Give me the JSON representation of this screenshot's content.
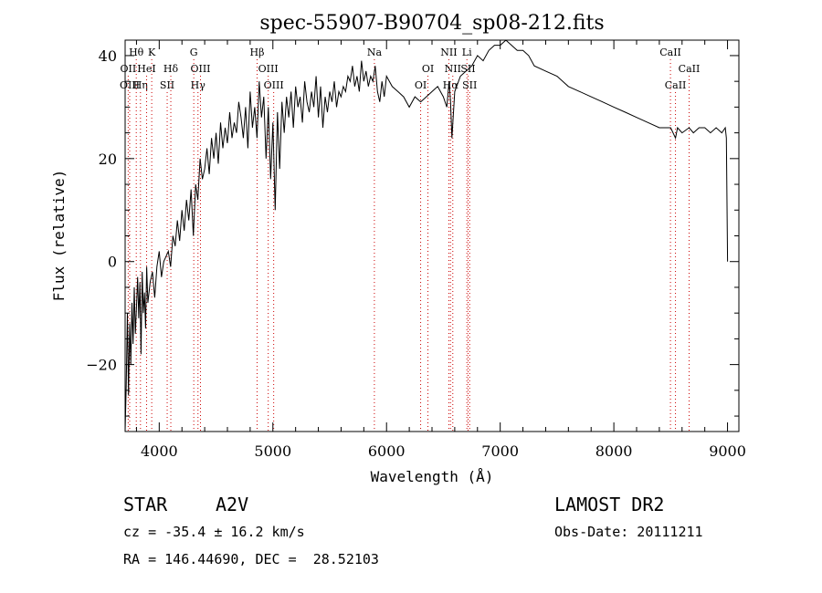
{
  "chart_data": {
    "type": "line",
    "title": "spec-55907-B90704_sp08-212.fits",
    "xlabel": "Wavelength (Å)",
    "ylabel": "Flux (relative)",
    "xlim": [
      3700,
      9100
    ],
    "ylim": [
      -33,
      43
    ],
    "x_ticks": [
      4000,
      5000,
      6000,
      7000,
      8000,
      9000
    ],
    "y_ticks": [
      -20,
      0,
      20,
      40
    ],
    "x_minor_step": 200,
    "y_minor_step": 5,
    "grid": false,
    "series": [
      {
        "x": [
          3700,
          3710,
          3720,
          3730,
          3740,
          3750,
          3760,
          3770,
          3780,
          3790,
          3800,
          3810,
          3820,
          3830,
          3840,
          3850,
          3860,
          3870,
          3880,
          3890,
          3900,
          3920,
          3940,
          3960,
          3980,
          4000,
          4020,
          4040,
          4060,
          4080,
          4100,
          4120,
          4140,
          4160,
          4180,
          4200,
          4220,
          4240,
          4260,
          4280,
          4300,
          4320,
          4340,
          4360,
          4380,
          4400,
          4420,
          4440,
          4460,
          4480,
          4500,
          4520,
          4540,
          4560,
          4580,
          4600,
          4620,
          4640,
          4660,
          4680,
          4700,
          4720,
          4740,
          4760,
          4780,
          4800,
          4820,
          4840,
          4860,
          4880,
          4900,
          4920,
          4940,
          4960,
          4980,
          5000,
          5020,
          5040,
          5060,
          5080,
          5100,
          5120,
          5140,
          5160,
          5180,
          5200,
          5220,
          5240,
          5260,
          5280,
          5300,
          5320,
          5340,
          5360,
          5380,
          5400,
          5420,
          5440,
          5460,
          5480,
          5500,
          5520,
          5540,
          5560,
          5580,
          5600,
          5620,
          5640,
          5660,
          5680,
          5700,
          5720,
          5740,
          5760,
          5780,
          5800,
          5820,
          5840,
          5860,
          5880,
          5900,
          5920,
          5940,
          5960,
          5980,
          6000,
          6050,
          6100,
          6150,
          6200,
          6250,
          6300,
          6350,
          6400,
          6450,
          6500,
          6530,
          6550,
          6563,
          6575,
          6600,
          6650,
          6700,
          6750,
          6800,
          6850,
          6900,
          6950,
          7000,
          7050,
          7100,
          7150,
          7200,
          7250,
          7300,
          7400,
          7500,
          7600,
          7700,
          7800,
          7900,
          8000,
          8100,
          8200,
          8300,
          8400,
          8450,
          8500,
          8542,
          8560,
          8600,
          8662,
          8700,
          8750,
          8800,
          8850,
          8900,
          8950,
          8980,
          8990,
          9000
        ],
        "y": [
          -33,
          -24,
          -10,
          -26,
          -12,
          -20,
          -8,
          -16,
          -5,
          -14,
          -9,
          -3,
          -11,
          -4,
          -18,
          -2,
          -10,
          -6,
          -13,
          -1,
          -8,
          -4,
          -2,
          -7,
          -1,
          2,
          -3,
          0,
          1,
          2,
          -1,
          5,
          3,
          8,
          4,
          10,
          6,
          12,
          8,
          14,
          5,
          15,
          12,
          20,
          16,
          18,
          22,
          17,
          24,
          20,
          25,
          19,
          27,
          22,
          26,
          23,
          29,
          24,
          27,
          25,
          31,
          28,
          24,
          30,
          22,
          33,
          26,
          30,
          24,
          35,
          28,
          32,
          20,
          30,
          16,
          27,
          10,
          29,
          18,
          31,
          25,
          32,
          28,
          33,
          26,
          34,
          30,
          32,
          27,
          35,
          31,
          29,
          33,
          30,
          36,
          28,
          34,
          26,
          32,
          29,
          33,
          31,
          35,
          30,
          33,
          32,
          34,
          33,
          36,
          35,
          38,
          34,
          36,
          33,
          39,
          35,
          37,
          34,
          36,
          35,
          38,
          33,
          31,
          35,
          32,
          36,
          34,
          33,
          32,
          30,
          32,
          31,
          32,
          33,
          34,
          32,
          30,
          35,
          31,
          24,
          33,
          36,
          37,
          38,
          40,
          39,
          41,
          42,
          42,
          43,
          42,
          41,
          41,
          40,
          38,
          37,
          36,
          34,
          33,
          32,
          31,
          30,
          29,
          28,
          27,
          26,
          26,
          26,
          24,
          26,
          25,
          26,
          25,
          26,
          26,
          25,
          26,
          25,
          26,
          24,
          0
        ]
      }
    ],
    "line_markers": [
      {
        "label": "Hδ",
        "x": 4102,
        "row": 1
      },
      {
        "label": "Hγ",
        "x": 4341,
        "row": 2
      },
      {
        "label": "Hβ",
        "x": 4861,
        "row": 0
      },
      {
        "label": "Hα",
        "x": 6563,
        "row": 2
      },
      {
        "label": "Hθ",
        "x": 3798,
        "row": 0
      },
      {
        "label": "Hη",
        "x": 3835,
        "row": 2
      },
      {
        "label": "OII",
        "x": 3727,
        "row": 1
      },
      {
        "label": "OIII",
        "x": 3740,
        "row": 2
      },
      {
        "label": "HeI",
        "x": 3889,
        "row": 1
      },
      {
        "label": "K",
        "x": 3934,
        "row": 0
      },
      {
        "label": "SII",
        "x": 4070,
        "row": 2
      },
      {
        "label": "G",
        "x": 4304,
        "row": 0
      },
      {
        "label": "OIII",
        "x": 4363,
        "row": 1
      },
      {
        "label": "OIII",
        "x": 4959,
        "row": 1
      },
      {
        "label": "OIII",
        "x": 5007,
        "row": 2
      },
      {
        "label": "Na",
        "x": 5893,
        "row": 0
      },
      {
        "label": "OI",
        "x": 6300,
        "row": 2
      },
      {
        "label": "OI",
        "x": 6364,
        "row": 1
      },
      {
        "label": "NII",
        "x": 6548,
        "row": 0
      },
      {
        "label": "NII",
        "x": 6583,
        "row": 1
      },
      {
        "label": "Li",
        "x": 6707,
        "row": 0
      },
      {
        "label": "SII",
        "x": 6717,
        "row": 1
      },
      {
        "label": "SII",
        "x": 6731,
        "row": 2
      },
      {
        "label": "CaII",
        "x": 8498,
        "row": 0
      },
      {
        "label": "CaII",
        "x": 8542,
        "row": 2
      },
      {
        "label": "CaII",
        "x": 8662,
        "row": 1
      }
    ]
  },
  "info": {
    "object_class": "STAR",
    "subclass": "A2V",
    "redshift_line": "cz = -35.4 ± 16.2 km/s",
    "coords_line": "RA = 146.44690, DEC =  28.52103",
    "survey": "LAMOST DR2",
    "obs_date_line": "Obs-Date: 20111211"
  }
}
